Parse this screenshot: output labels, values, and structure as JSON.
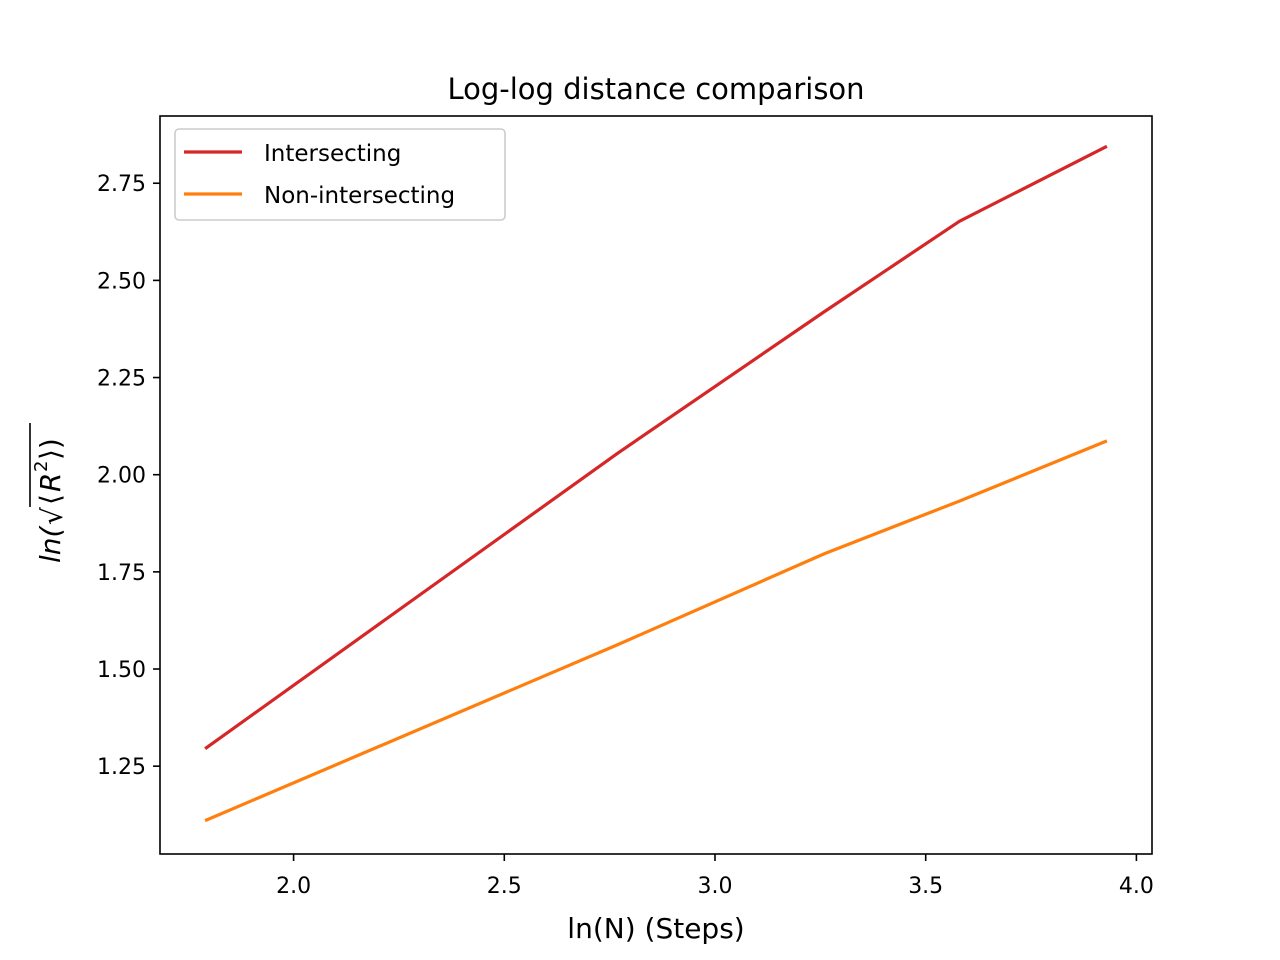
{
  "chart_data": {
    "type": "line",
    "title": "Log-log distance comparison",
    "xlabel": "ln(N) (Steps)",
    "ylabel": {
      "prefix": "ln(",
      "radical": "√",
      "open": "⟨",
      "variable": "R",
      "exponent": "2",
      "close": "⟩)"
    },
    "x": [
      1.79,
      2.77,
      3.26,
      3.58,
      3.93
    ],
    "series": [
      {
        "name": "Intersecting",
        "color": "#d62728",
        "values": [
          1.295,
          2.056,
          2.42,
          2.652,
          2.845
        ]
      },
      {
        "name": "Non-intersecting",
        "color": "#ff7f0e",
        "values": [
          1.11,
          1.563,
          1.797,
          1.932,
          2.087
        ]
      }
    ],
    "xlim": [
      1.683,
      4.037
    ],
    "ylim": [
      1.024,
      2.923
    ],
    "xticks": [
      2.0,
      2.5,
      3.0,
      3.5,
      4.0
    ],
    "xtick_labels": [
      "2.0",
      "2.5",
      "3.0",
      "3.5",
      "4.0"
    ],
    "yticks": [
      1.25,
      1.5,
      1.75,
      2.0,
      2.25,
      2.5,
      2.75
    ],
    "ytick_labels": [
      "1.25",
      "1.50",
      "1.75",
      "2.00",
      "2.25",
      "2.50",
      "2.75"
    ],
    "grid": false,
    "legend_position": "top-left"
  }
}
